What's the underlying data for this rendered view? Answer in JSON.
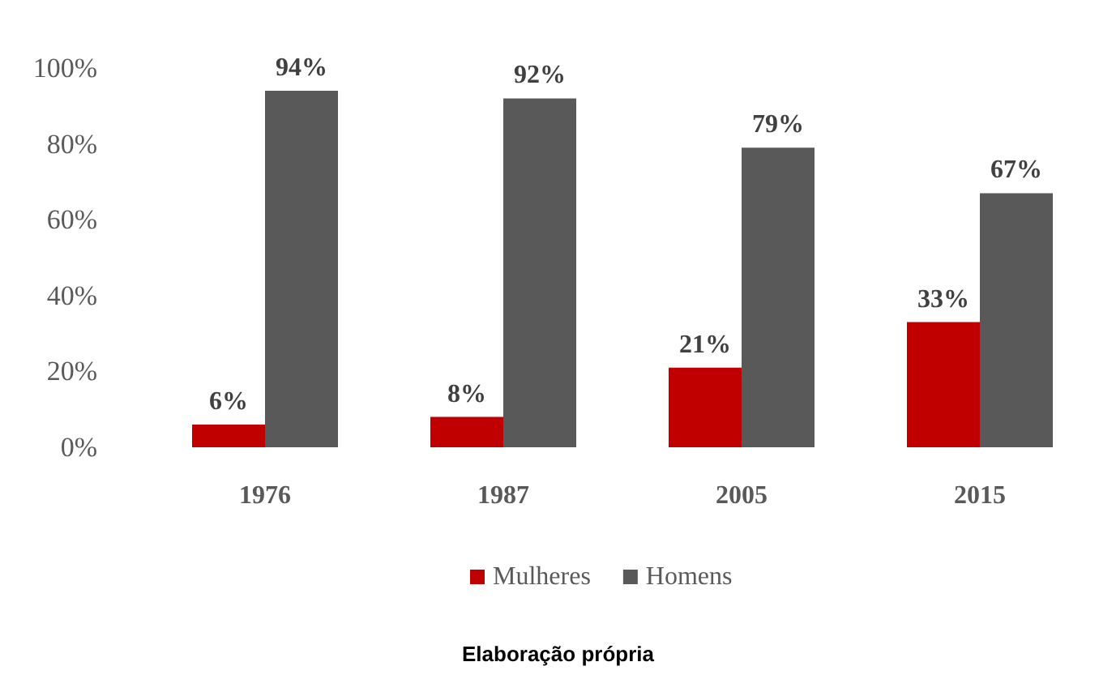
{
  "chart_data": {
    "type": "bar",
    "categories": [
      "1976",
      "1987",
      "2005",
      "2015"
    ],
    "series": [
      {
        "name": "Mulheres",
        "color": "#c00000",
        "values": [
          6,
          8,
          21,
          33
        ],
        "value_labels": [
          "6%",
          "8%",
          "21%",
          "33%"
        ]
      },
      {
        "name": "Homens",
        "color": "#595959",
        "values": [
          94,
          92,
          79,
          67
        ],
        "value_labels": [
          "94%",
          "92%",
          "79%",
          "67%"
        ]
      }
    ],
    "ylim": [
      0,
      100
    ],
    "yticks": [
      {
        "value": 0,
        "label": "0%"
      },
      {
        "value": 20,
        "label": "20%"
      },
      {
        "value": 40,
        "label": "40%"
      },
      {
        "value": 60,
        "label": "60%"
      },
      {
        "value": 80,
        "label": "80%"
      },
      {
        "value": 100,
        "label": "100%"
      }
    ],
    "grid": false,
    "legend": "bottom",
    "annotations": [
      "Elaboração própria"
    ]
  }
}
